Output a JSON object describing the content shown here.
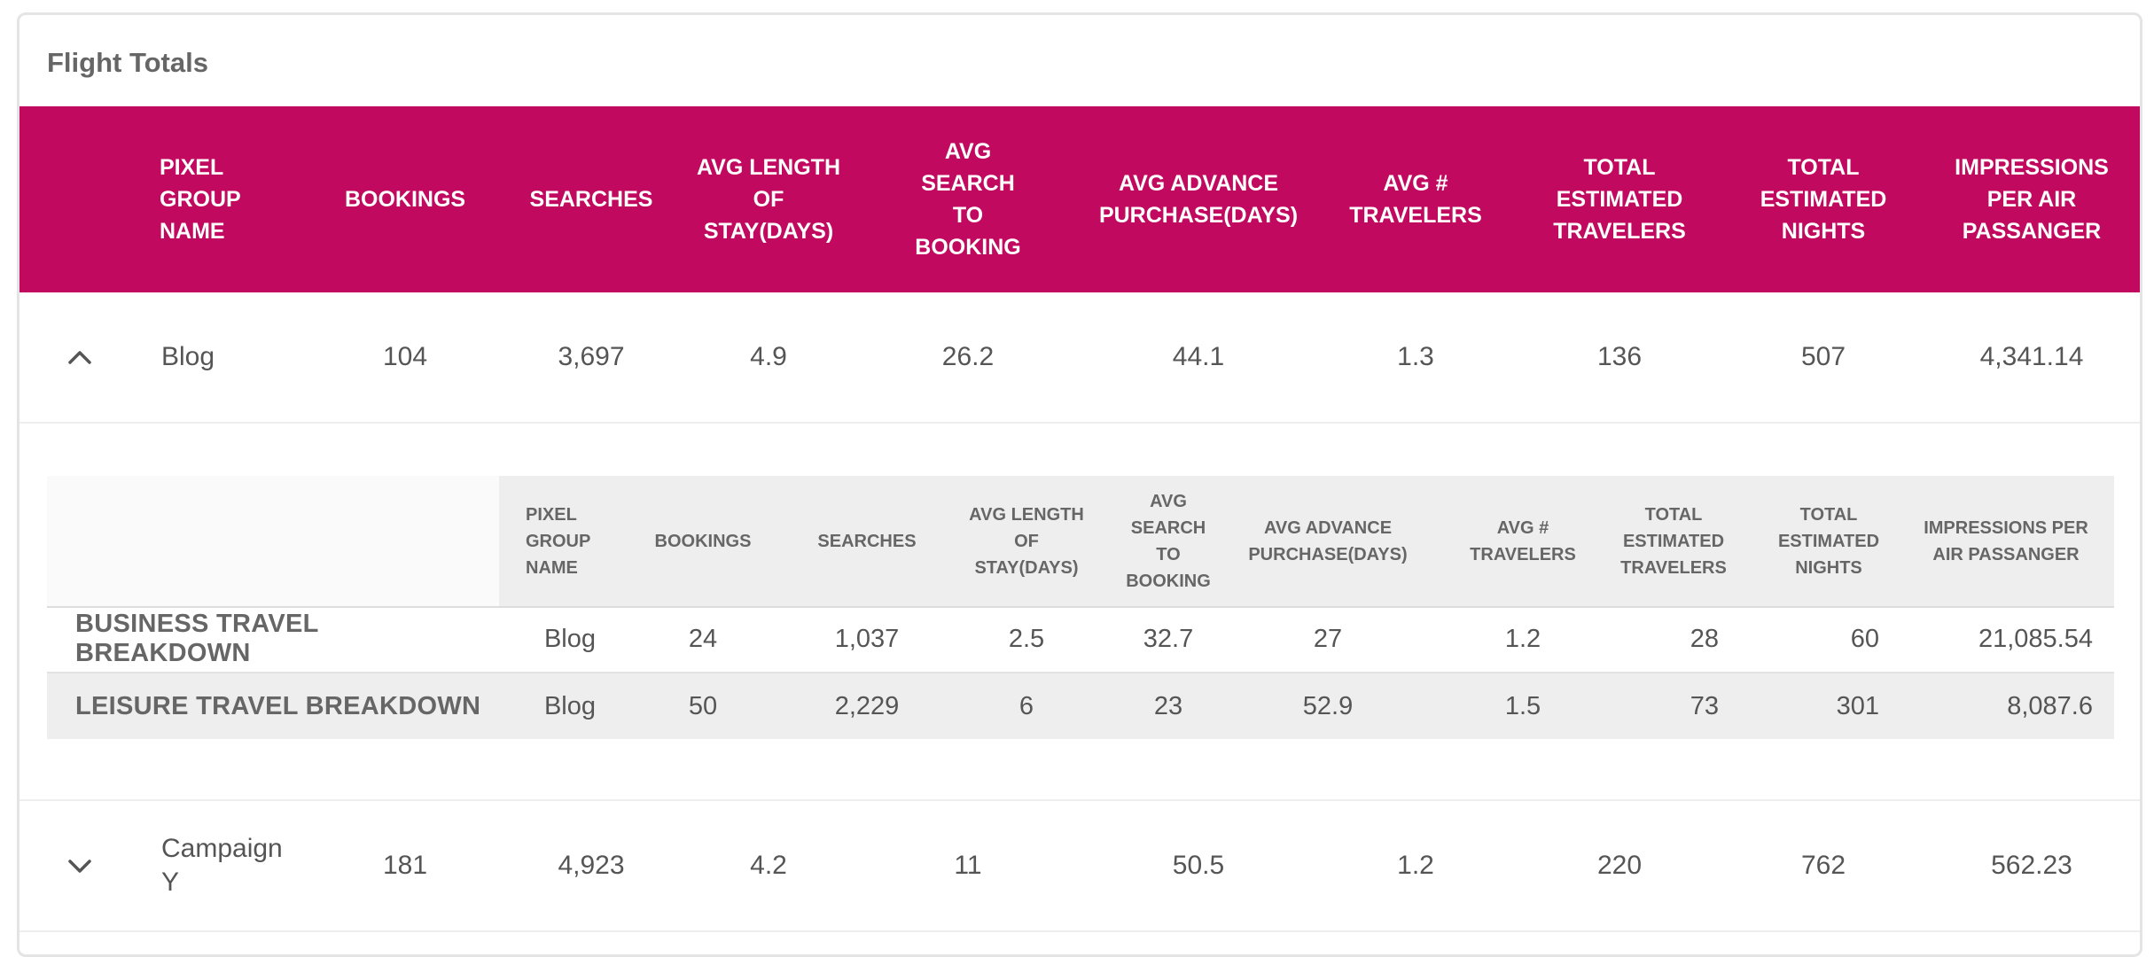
{
  "card": {
    "title": "Flight Totals"
  },
  "columns": [
    "PIXEL GROUP NAME",
    "BOOKINGS",
    "SEARCHES",
    "AVG LENGTH OF STAY(DAYS)",
    "AVG SEARCH TO BOOKING",
    "AVG ADVANCE PURCHASE(DAYS)",
    "AVG # TRAVELERS",
    "TOTAL ESTIMATED TRAVELERS",
    "TOTAL ESTIMATED NIGHTS",
    "IMPRESSIONS PER AIR PASSANGER"
  ],
  "rows": [
    {
      "expanded": true,
      "toggle_icon": "chevron-up-icon",
      "cells": [
        "Blog",
        "104",
        "3,697",
        "4.9",
        "26.2",
        "44.1",
        "1.3",
        "136",
        "507",
        "4,341.14"
      ]
    },
    {
      "expanded": false,
      "toggle_icon": "chevron-down-icon",
      "cells": [
        "Campaign Y",
        "181",
        "4,923",
        "4.2",
        "11",
        "50.5",
        "1.2",
        "220",
        "762",
        "562.23"
      ]
    }
  ],
  "breakdown": {
    "columns": [
      "PIXEL GROUP NAME",
      "BOOKINGS",
      "SEARCHES",
      "AVG LENGTH OF STAY(DAYS)",
      "AVG SEARCH TO BOOKING",
      "AVG ADVANCE PURCHASE(DAYS)",
      "AVG # TRAVELERS",
      "TOTAL ESTIMATED TRAVELERS",
      "TOTAL ESTIMATED NIGHTS",
      "IMPRESSIONS PER AIR PASSANGER"
    ],
    "rows": [
      {
        "label": "BUSINESS TRAVEL BREAKDOWN",
        "cells": [
          "Blog",
          "24",
          "1,037",
          "2.5",
          "32.7",
          "27",
          "1.2",
          "28",
          "60",
          "21,085.54"
        ]
      },
      {
        "label": "LEISURE TRAVEL BREAKDOWN",
        "cells": [
          "Blog",
          "50",
          "2,229",
          "6",
          "23",
          "52.9",
          "1.5",
          "73",
          "301",
          "8,087.6"
        ]
      }
    ]
  },
  "colors": {
    "header_bg": "#c0095f",
    "header_text": "#ffffff",
    "sub_header_bg": "#eeeeee"
  }
}
